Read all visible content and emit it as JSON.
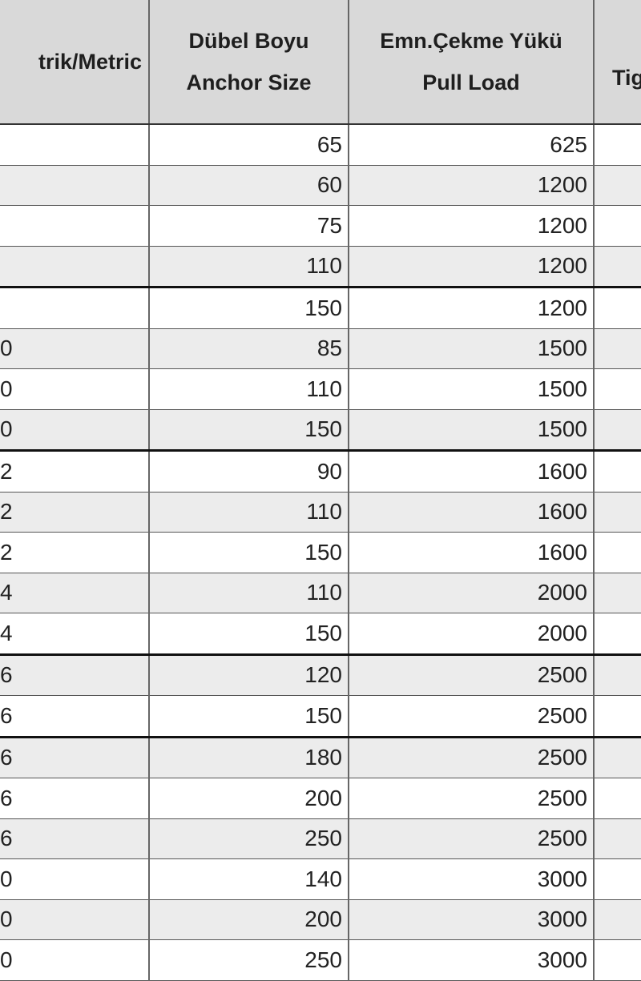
{
  "headers": {
    "metric": "trik/Metric",
    "anchor_size_tr": "Dübel Boyu",
    "anchor_size_en": "Anchor Size",
    "pull_load_tr": "Emn.Çekme Yükü",
    "pull_load_en": "Pull Load",
    "tightening": "Tig"
  },
  "rows": [
    {
      "metric": "",
      "size": "65",
      "load": "625"
    },
    {
      "metric": "",
      "size": "60",
      "load": "1200"
    },
    {
      "metric": "",
      "size": "75",
      "load": "1200"
    },
    {
      "metric": "",
      "size": "110",
      "load": "1200"
    },
    {
      "metric": "",
      "size": "150",
      "load": "1200"
    },
    {
      "metric": "0",
      "size": "85",
      "load": "1500"
    },
    {
      "metric": "0",
      "size": "110",
      "load": "1500"
    },
    {
      "metric": "0",
      "size": "150",
      "load": "1500"
    },
    {
      "metric": "2",
      "size": "90",
      "load": "1600"
    },
    {
      "metric": "2",
      "size": "110",
      "load": "1600"
    },
    {
      "metric": "2",
      "size": "150",
      "load": "1600"
    },
    {
      "metric": "4",
      "size": "110",
      "load": "2000"
    },
    {
      "metric": "4",
      "size": "150",
      "load": "2000"
    },
    {
      "metric": "6",
      "size": "120",
      "load": "2500"
    },
    {
      "metric": "6",
      "size": "150",
      "load": "2500"
    },
    {
      "metric": "6",
      "size": "180",
      "load": "2500"
    },
    {
      "metric": "6",
      "size": "200",
      "load": "2500"
    },
    {
      "metric": "6",
      "size": "250",
      "load": "2500"
    },
    {
      "metric": "0",
      "size": "140",
      "load": "3000"
    },
    {
      "metric": "0",
      "size": "200",
      "load": "3000"
    },
    {
      "metric": "0",
      "size": "250",
      "load": "3000"
    }
  ]
}
